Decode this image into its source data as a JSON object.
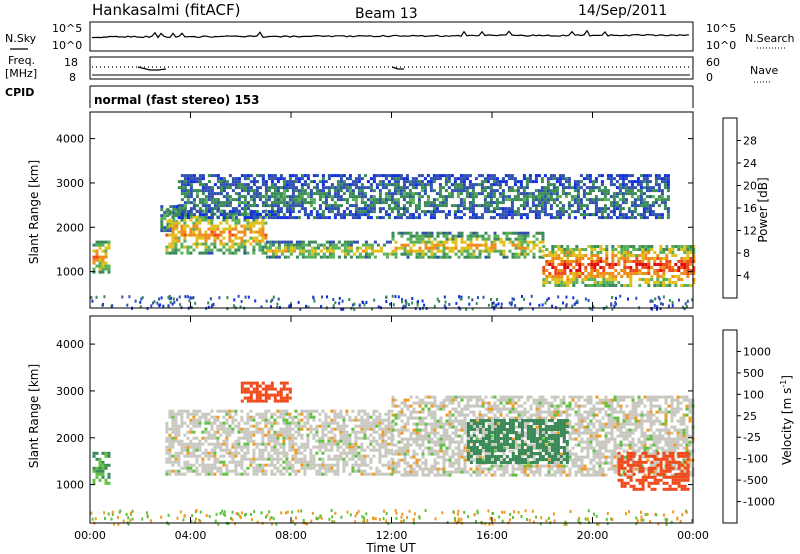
{
  "header": {
    "station": "Hankasalmi (fitACF)",
    "beam": "Beam 13",
    "date": "14/Sep/2011"
  },
  "noise_panel": {
    "left_label": "N.Sky",
    "right_label": "N.Search",
    "left_ticks": [
      "10^5",
      "10^0"
    ],
    "right_ticks": [
      "10^5",
      "10^0"
    ]
  },
  "freq_panel": {
    "left_label_1": "Freq.",
    "left_label_2": "[MHz]",
    "right_label": "Nave",
    "left_ticks": [
      "18",
      "8"
    ],
    "right_ticks": [
      "60",
      "0"
    ]
  },
  "cpid_panel": {
    "label": "CPID",
    "mode_text": "normal (fast stereo) 153"
  },
  "colors": {
    "power_scale": [
      "#1030e0",
      "#3050b0",
      "#3a8a58",
      "#58b058",
      "#e0c018",
      "#f08a18",
      "#f04818",
      "#e00a0a"
    ],
    "velocity_scale": [
      "#e00a0a",
      "#f04818",
      "#f09a20",
      "#c8c8c0",
      "#60c040",
      "#3a8a58",
      "#2c5ab0"
    ],
    "ground_scatter": "#b8b8b0"
  },
  "power_colorbar": {
    "title": "Power [dB]",
    "ticks": [
      "28",
      "24",
      "20",
      "16",
      "12",
      "8",
      "4"
    ]
  },
  "velocity_colorbar": {
    "title": "Velocity [m s",
    "title_sup": "-1",
    "title_end": "]",
    "ticks": [
      "1000",
      "500",
      "100",
      "25",
      "-25",
      "-100",
      "-500",
      "-1000"
    ]
  },
  "chart_data": [
    {
      "type": "heatmap",
      "name": "power",
      "ylabel": "Slant Range [km]",
      "xlabel": "",
      "x_range": [
        0,
        24
      ],
      "ylim": [
        180,
        4600
      ],
      "y_ticks": [
        1000,
        2000,
        3000,
        4000
      ],
      "y_tick_labels": [
        "1000",
        "2000",
        "3000",
        "4000"
      ],
      "x_ticks": [
        0,
        4,
        8,
        12,
        16,
        20,
        24
      ],
      "colorbar": "Power [dB]",
      "features": [
        {
          "t": [
            0.1,
            0.7
          ],
          "range_km": [
            1000,
            1700
          ],
          "power_db": 24
        },
        {
          "t": [
            2.8,
            3.5
          ],
          "range_km": [
            1900,
            2500
          ],
          "power_db": 14
        },
        {
          "t": [
            3.0,
            7.0
          ],
          "range_km": [
            1400,
            2400
          ],
          "power_db": 22
        },
        {
          "t": [
            7.0,
            12.0
          ],
          "range_km": [
            1300,
            1700
          ],
          "power_db": 18
        },
        {
          "t": [
            12.0,
            18.0
          ],
          "range_km": [
            1300,
            1900
          ],
          "power_db": 20
        },
        {
          "t": [
            18.0,
            24.0
          ],
          "range_km": [
            700,
            1600
          ],
          "power_db": 28
        },
        {
          "t": [
            3.5,
            23.0
          ],
          "range_km": [
            2200,
            3200
          ],
          "power_db": 10
        }
      ]
    },
    {
      "type": "heatmap",
      "name": "velocity",
      "ylabel": "Slant Range [km]",
      "xlabel": "Time UT",
      "x_range": [
        0,
        24
      ],
      "ylim": [
        180,
        4600
      ],
      "y_ticks": [
        1000,
        2000,
        3000,
        4000
      ],
      "y_tick_labels": [
        "1000",
        "2000",
        "3000",
        "4000"
      ],
      "x_ticks": [
        0,
        4,
        8,
        12,
        16,
        20,
        24
      ],
      "x_tick_labels": [
        "00:00",
        "04:00",
        "08:00",
        "12:00",
        "16:00",
        "20:00",
        "00:00"
      ],
      "colorbar": "Velocity [m s-1]",
      "features": [
        {
          "t": [
            0.1,
            0.7
          ],
          "range_km": [
            1000,
            1700
          ],
          "velocity": 100
        },
        {
          "t": [
            3.0,
            12.0
          ],
          "range_km": [
            1200,
            2600
          ],
          "velocity": 0
        },
        {
          "t": [
            12.0,
            24.0
          ],
          "range_km": [
            1200,
            2900
          ],
          "velocity": 0
        },
        {
          "t": [
            15.0,
            19.0
          ],
          "range_km": [
            1500,
            2400
          ],
          "velocity": 200
        },
        {
          "t": [
            21.0,
            23.8
          ],
          "range_km": [
            900,
            1700
          ],
          "velocity": -300
        },
        {
          "t": [
            6.0,
            8.0
          ],
          "range_km": [
            2800,
            3200
          ],
          "velocity": -200
        }
      ]
    }
  ]
}
